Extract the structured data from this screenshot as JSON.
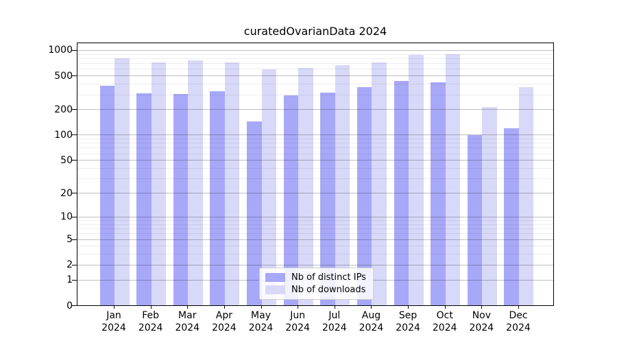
{
  "chart_data": {
    "type": "bar",
    "title": "curatedOvarianData 2024",
    "categories": [
      "Jan 2024",
      "Feb 2024",
      "Mar 2024",
      "Apr 2024",
      "May 2024",
      "Jun 2024",
      "Jul 2024",
      "Aug 2024",
      "Sep 2024",
      "Oct 2024",
      "Nov 2024",
      "Dec 2024"
    ],
    "series": [
      {
        "name": "Nb of distinct IPs",
        "color": "#a8a8f8",
        "values": [
          380,
          310,
          305,
          330,
          145,
          290,
          313,
          365,
          435,
          420,
          99,
          120
        ]
      },
      {
        "name": "Nb of downloads",
        "color": "#d8d8f8",
        "values": [
          795,
          715,
          750,
          710,
          595,
          615,
          660,
          720,
          870,
          900,
          215,
          368
        ]
      }
    ],
    "xlabel": "",
    "ylabel": "",
    "yscale": "log1p",
    "ylim": [
      0,
      1150
    ],
    "yticks": [
      0,
      1,
      2,
      5,
      10,
      20,
      50,
      100,
      200,
      500,
      1000
    ],
    "yticks_minor": [
      3,
      4,
      6,
      7,
      8,
      9,
      30,
      40,
      60,
      70,
      80,
      90,
      300,
      400,
      600,
      700,
      800,
      900
    ],
    "grid": true,
    "grid_on_top_of_bars": true,
    "legend_position": "lower center"
  }
}
